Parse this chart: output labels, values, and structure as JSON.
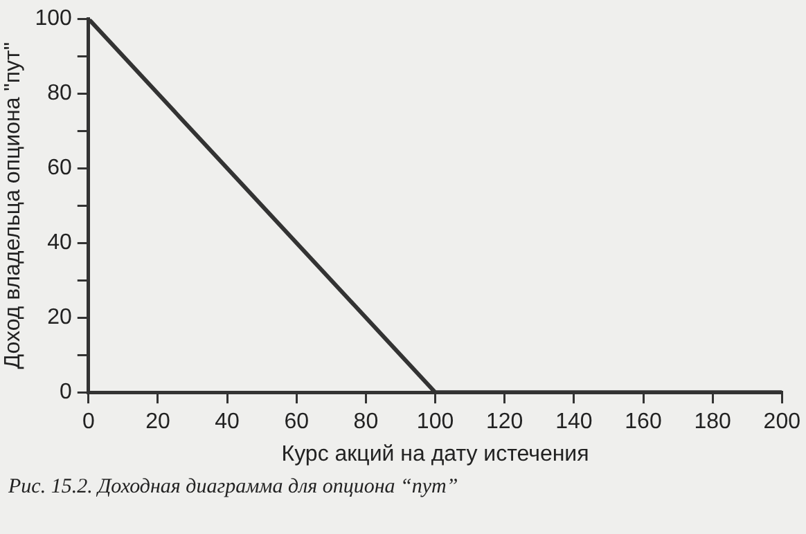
{
  "chart_data": {
    "type": "line",
    "x": [
      0,
      100,
      200
    ],
    "series": [
      {
        "color": "#333333",
        "values": [
          100,
          0,
          0
        ]
      }
    ],
    "xlabel": "Курс акций на дату истечения",
    "ylabel": "Доход владельца опциона \"пут\"",
    "xlim": [
      0,
      200
    ],
    "xticks": [
      0,
      20,
      40,
      60,
      80,
      100,
      120,
      140,
      160,
      180,
      200
    ],
    "ylim": [
      0,
      100
    ],
    "yticks": [
      0,
      {
        "value": 10,
        "label": null
      },
      20,
      {
        "value": 30,
        "label": null
      },
      40,
      {
        "value": 50,
        "label": null
      },
      60,
      {
        "value": 70,
        "label": null
      },
      80,
      {
        "value": 90,
        "label": null
      },
      100
    ],
    "annotations": [
      "Рис. 15.2. Доходная диаграмма для опциона “пут”"
    ],
    "grid": false,
    "legend": false,
    "marker": "none",
    "line_style": "solid"
  }
}
